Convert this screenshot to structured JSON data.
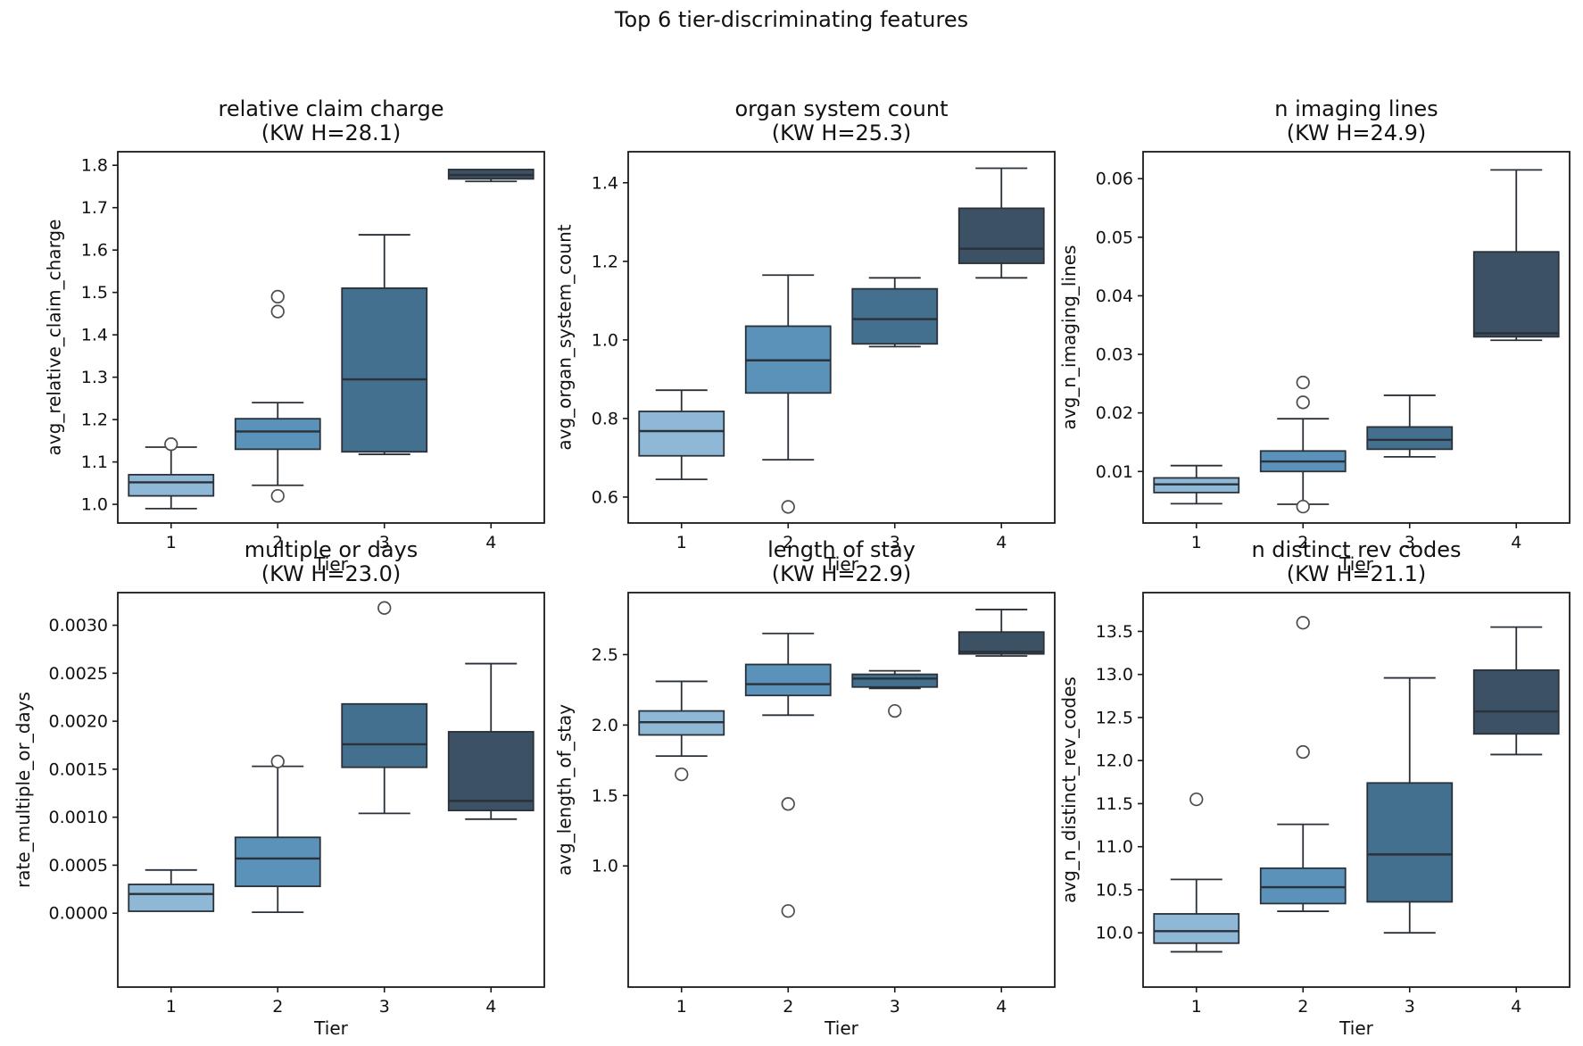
{
  "figure": {
    "title": "Top 6 tier-discriminating features",
    "background": "#ffffff"
  },
  "palette": {
    "tier_colors": [
      "#8fb8d6",
      "#5b92ba",
      "#44708f",
      "#3d5164"
    ],
    "box_edge": "#2a3138",
    "median_line": "#2a3138",
    "whisker": "#2a3138",
    "flier_stroke": "#4c4c4c",
    "spine": "#1a1a1a",
    "text": "#111111"
  },
  "chart_data": [
    {
      "type": "box",
      "row": 0,
      "col": 0,
      "title": "relative claim charge",
      "subtitle": "(KW H=28.1)",
      "kw_h": 28.1,
      "ylabel": "avg_relative_claim_charge",
      "xlabel": "Tier",
      "categories": [
        "1",
        "2",
        "3",
        "4"
      ],
      "ylim": [
        0.956,
        1.832
      ],
      "yticks": [
        1.0,
        1.1,
        1.2,
        1.3,
        1.4,
        1.5,
        1.6,
        1.7,
        1.8
      ],
      "yticklabels": [
        "1.0",
        "1.1",
        "1.2",
        "1.3",
        "1.4",
        "1.5",
        "1.6",
        "1.7",
        "1.8"
      ],
      "boxes": [
        {
          "whislo": 0.99,
          "q1": 1.02,
          "med": 1.052,
          "q3": 1.07,
          "whishi": 1.135,
          "fliers": [
            1.142
          ]
        },
        {
          "whislo": 1.045,
          "q1": 1.13,
          "med": 1.172,
          "q3": 1.202,
          "whishi": 1.24,
          "fliers": [
            1.49,
            1.455,
            1.02
          ]
        },
        {
          "whislo": 1.118,
          "q1": 1.124,
          "med": 1.295,
          "q3": 1.51,
          "whishi": 1.636,
          "fliers": []
        },
        {
          "whislo": 1.762,
          "q1": 1.768,
          "med": 1.777,
          "q3": 1.79,
          "whishi": 1.793,
          "fliers": []
        }
      ]
    },
    {
      "type": "box",
      "row": 0,
      "col": 1,
      "title": "organ system count",
      "subtitle": "(KW H=25.3)",
      "kw_h": 25.3,
      "ylabel": "avg_organ_system_count",
      "xlabel": "Tier",
      "categories": [
        "1",
        "2",
        "3",
        "4"
      ],
      "ylim": [
        0.534,
        1.479
      ],
      "yticks": [
        0.6,
        0.8,
        1.0,
        1.2,
        1.4
      ],
      "yticklabels": [
        "0.6",
        "0.8",
        "1.0",
        "1.2",
        "1.4"
      ],
      "boxes": [
        {
          "whislo": 0.645,
          "q1": 0.705,
          "med": 0.768,
          "q3": 0.818,
          "whishi": 0.872,
          "fliers": []
        },
        {
          "whislo": 0.695,
          "q1": 0.865,
          "med": 0.948,
          "q3": 1.035,
          "whishi": 1.165,
          "fliers": [
            0.575
          ]
        },
        {
          "whislo": 0.983,
          "q1": 0.99,
          "med": 1.053,
          "q3": 1.13,
          "whishi": 1.158,
          "fliers": []
        },
        {
          "whislo": 1.158,
          "q1": 1.195,
          "med": 1.232,
          "q3": 1.335,
          "whishi": 1.437,
          "fliers": []
        }
      ]
    },
    {
      "type": "box",
      "row": 0,
      "col": 2,
      "title": "n imaging lines",
      "subtitle": "(KW H=24.9)",
      "kw_h": 24.9,
      "ylabel": "avg_n_imaging_lines",
      "xlabel": "Tier",
      "categories": [
        "1",
        "2",
        "3",
        "4"
      ],
      "ylim": [
        0.0012,
        0.0646
      ],
      "yticks": [
        0.01,
        0.02,
        0.03,
        0.04,
        0.05,
        0.06
      ],
      "yticklabels": [
        "0.01",
        "0.02",
        "0.03",
        "0.04",
        "0.05",
        "0.06"
      ],
      "boxes": [
        {
          "whislo": 0.0045,
          "q1": 0.0064,
          "med": 0.0078,
          "q3": 0.0089,
          "whishi": 0.011,
          "fliers": []
        },
        {
          "whislo": 0.0044,
          "q1": 0.01,
          "med": 0.0117,
          "q3": 0.0135,
          "whishi": 0.019,
          "fliers": [
            0.0252,
            0.0218,
            0.004
          ]
        },
        {
          "whislo": 0.0125,
          "q1": 0.0138,
          "med": 0.0154,
          "q3": 0.0176,
          "whishi": 0.023,
          "fliers": []
        },
        {
          "whislo": 0.0324,
          "q1": 0.033,
          "med": 0.0336,
          "q3": 0.0475,
          "whishi": 0.0615,
          "fliers": []
        }
      ]
    },
    {
      "type": "box",
      "row": 1,
      "col": 0,
      "title": "multiple or days",
      "subtitle": "(KW H=23.0)",
      "kw_h": 23.0,
      "ylabel": "rate_multiple_or_days",
      "xlabel": "Tier",
      "categories": [
        "1",
        "2",
        "3",
        "4"
      ],
      "ylim": [
        -0.00077,
        0.00334
      ],
      "yticks": [
        0.0,
        0.0005,
        0.001,
        0.0015,
        0.002,
        0.0025,
        0.003
      ],
      "yticklabels": [
        "0.0000",
        "0.0005",
        "0.0010",
        "0.0015",
        "0.0020",
        "0.0025",
        "0.0030"
      ],
      "boxes": [
        {
          "whislo": 2e-05,
          "q1": 2e-05,
          "med": 0.0002,
          "q3": 0.0003,
          "whishi": 0.00045,
          "fliers": []
        },
        {
          "whislo": 1e-05,
          "q1": 0.00028,
          "med": 0.00057,
          "q3": 0.00079,
          "whishi": 0.00153,
          "fliers": [
            0.00158
          ]
        },
        {
          "whislo": 0.00104,
          "q1": 0.00152,
          "med": 0.00176,
          "q3": 0.00218,
          "whishi": 0.00218,
          "fliers": [
            0.00318
          ]
        },
        {
          "whislo": 0.00098,
          "q1": 0.00107,
          "med": 0.00117,
          "q3": 0.00189,
          "whishi": 0.0026,
          "fliers": []
        }
      ]
    },
    {
      "type": "box",
      "row": 1,
      "col": 1,
      "title": "length of stay",
      "subtitle": "(KW H=22.9)",
      "kw_h": 22.9,
      "ylabel": "avg_length_of_stay",
      "xlabel": "Tier",
      "categories": [
        "1",
        "2",
        "3",
        "4"
      ],
      "ylim": [
        0.14,
        2.94
      ],
      "yticks": [
        1.0,
        1.5,
        2.0,
        2.5
      ],
      "yticklabels": [
        "1.0",
        "1.5",
        "2.0",
        "2.5"
      ],
      "boxes": [
        {
          "whislo": 1.78,
          "q1": 1.93,
          "med": 2.02,
          "q3": 2.1,
          "whishi": 2.31,
          "fliers": [
            1.65
          ]
        },
        {
          "whislo": 2.07,
          "q1": 2.21,
          "med": 2.29,
          "q3": 2.43,
          "whishi": 2.65,
          "fliers": [
            1.44,
            0.68
          ]
        },
        {
          "whislo": 2.26,
          "q1": 2.27,
          "med": 2.33,
          "q3": 2.36,
          "whishi": 2.385,
          "fliers": [
            2.1
          ]
        },
        {
          "whislo": 2.49,
          "q1": 2.505,
          "med": 2.52,
          "q3": 2.66,
          "whishi": 2.82,
          "fliers": []
        }
      ]
    },
    {
      "type": "box",
      "row": 1,
      "col": 2,
      "title": "n distinct rev codes",
      "subtitle": "(KW H=21.1)",
      "kw_h": 21.1,
      "ylabel": "avg_n_distinct_rev_codes",
      "xlabel": "Tier",
      "categories": [
        "1",
        "2",
        "3",
        "4"
      ],
      "ylim": [
        9.37,
        13.95
      ],
      "yticks": [
        10.0,
        10.5,
        11.0,
        11.5,
        12.0,
        12.5,
        13.0,
        13.5
      ],
      "yticklabels": [
        "10.0",
        "10.5",
        "11.0",
        "11.5",
        "12.0",
        "12.5",
        "13.0",
        "13.5"
      ],
      "boxes": [
        {
          "whislo": 9.78,
          "q1": 9.88,
          "med": 10.02,
          "q3": 10.22,
          "whishi": 10.62,
          "fliers": [
            11.55
          ]
        },
        {
          "whislo": 10.25,
          "q1": 10.34,
          "med": 10.53,
          "q3": 10.75,
          "whishi": 11.26,
          "fliers": [
            13.6,
            12.1
          ]
        },
        {
          "whislo": 10.0,
          "q1": 10.36,
          "med": 10.91,
          "q3": 11.74,
          "whishi": 12.96,
          "fliers": []
        },
        {
          "whislo": 12.07,
          "q1": 12.31,
          "med": 12.57,
          "q3": 13.05,
          "whishi": 13.55,
          "fliers": []
        }
      ]
    }
  ]
}
